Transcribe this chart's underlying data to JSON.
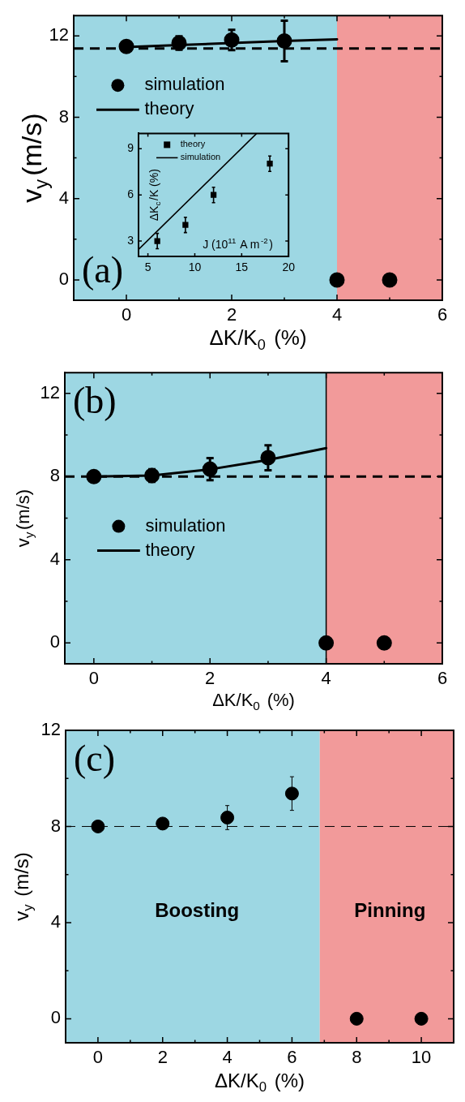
{
  "chart_data": [
    {
      "type": "scatter",
      "xlabel": "ΔK/K$_{0}$ (%)",
      "ylabel": "v$_{y}$(m/s)",
      "xlim": [
        -1,
        6
      ],
      "ylim": [
        -1,
        13
      ],
      "xticks": [
        0,
        {
          "value": 1,
          "label": null
        },
        2,
        {
          "value": 3,
          "label": null
        },
        4,
        {
          "value": 5,
          "label": null
        },
        6
      ],
      "yticks": [
        0,
        {
          "value": 2,
          "label": null
        },
        4,
        {
          "value": 6,
          "label": null
        },
        8,
        {
          "value": 10,
          "label": null
        },
        12
      ],
      "legend": "top left",
      "series": [
        {
          "name": "simulation",
          "type": "scatter",
          "marker": "circle",
          "color": "#000000",
          "x": [
            0,
            1,
            2,
            3,
            4,
            5
          ],
          "values": [
            11.48,
            11.65,
            11.8,
            11.75,
            0,
            0
          ],
          "errors": [
            null,
            0.33,
            0.5,
            1.0,
            null,
            null
          ]
        },
        {
          "name": "theory",
          "type": "line",
          "marker": "none",
          "line_style": "solid",
          "color": "#000000",
          "x": [
            0,
            1,
            2,
            3,
            4
          ],
          "values": [
            11.45,
            11.55,
            11.65,
            11.75,
            11.83
          ]
        }
      ],
      "ref_lines": [
        {
          "axis": "y",
          "value": 11.38,
          "line_style": "dashed",
          "color": "#000000"
        }
      ],
      "bands": [
        {
          "axis": "x",
          "from": -1,
          "to": 4,
          "color": "#9dd7e3"
        },
        {
          "axis": "x",
          "from": 4,
          "to": 6,
          "color": "#f29a9a"
        }
      ],
      "annotations": [
        "(a)"
      ]
    },
    {
      "type": "scatter",
      "xlabel": "J (10$^{11}$ A m$^{-2}$)",
      "ylabel": "ΔK$_{c}$/K (%)",
      "xlim": [
        4,
        20
      ],
      "ylim": [
        2,
        10
      ],
      "xticks": [
        5,
        10,
        15,
        20
      ],
      "yticks": [
        3,
        6,
        9
      ],
      "legend": "top left",
      "series": [
        {
          "name": "theory",
          "type": "scatter",
          "marker": "square",
          "color": "#000000",
          "x": [
            6,
            9,
            12,
            18
          ],
          "values": [
            3.0,
            4.05,
            6.0,
            8.03
          ],
          "errors": [
            0.5,
            0.5,
            0.5,
            0.5
          ]
        },
        {
          "name": "simulation",
          "type": "line",
          "marker": "none",
          "line_style": "solid",
          "color": "#000000",
          "x": [
            4,
            16.6
          ],
          "values": [
            2.45,
            10
          ]
        }
      ]
    },
    {
      "type": "scatter",
      "xlabel": "ΔK/K$_{0}$ (%)",
      "ylabel": "v$_{y}$(m/s)",
      "xlim": [
        -0.5,
        6
      ],
      "ylim": [
        -1,
        13
      ],
      "xticks": [
        0,
        {
          "value": 1,
          "label": null
        },
        2,
        {
          "value": 3,
          "label": null
        },
        4,
        {
          "value": 5,
          "label": null
        },
        6
      ],
      "yticks": [
        0,
        {
          "value": 2,
          "label": null
        },
        4,
        {
          "value": 6,
          "label": null
        },
        8,
        {
          "value": 10,
          "label": null
        },
        12
      ],
      "legend": "left",
      "series": [
        {
          "name": "simulation",
          "type": "scatter",
          "marker": "circle",
          "color": "#000000",
          "x": [
            0,
            1,
            2,
            3,
            4,
            5
          ],
          "values": [
            8.0,
            8.05,
            8.36,
            8.91,
            0,
            0
          ],
          "errors": [
            null,
            0.3,
            0.53,
            0.6,
            null,
            null
          ]
        },
        {
          "name": "theory",
          "type": "line",
          "marker": "none",
          "line_style": "solid",
          "color": "#000000",
          "x": [
            0,
            1,
            2,
            3,
            4
          ],
          "values": [
            8.0,
            8.05,
            8.35,
            8.8,
            9.37
          ]
        }
      ],
      "ref_lines": [
        {
          "axis": "y",
          "value": 8,
          "line_style": "dashed",
          "color": "#000000"
        },
        {
          "axis": "x",
          "value": 4,
          "line_style": "solid",
          "color": "#000000"
        }
      ],
      "bands": [
        {
          "axis": "x",
          "from": -0.5,
          "to": 4,
          "color": "#9dd7e3"
        },
        {
          "axis": "x",
          "from": 4,
          "to": 6,
          "color": "#f29a9a"
        }
      ],
      "annotations": [
        "(b)"
      ]
    },
    {
      "type": "scatter",
      "xlabel": "ΔK/K$_{0}$ (%)",
      "ylabel": "v$_{y}$ (m/s)",
      "xlim": [
        -1,
        11
      ],
      "ylim": [
        -1,
        12
      ],
      "xticks": [
        {
          "value": -1,
          "label": null
        },
        0,
        {
          "value": 1,
          "label": null
        },
        2,
        {
          "value": 3,
          "label": null
        },
        4,
        {
          "value": 5,
          "label": null
        },
        6,
        {
          "value": 7,
          "label": null
        },
        8,
        {
          "value": 9,
          "label": null
        },
        10
      ],
      "yticks": [
        0,
        {
          "value": 2,
          "label": null
        },
        4,
        {
          "value": 6,
          "label": null
        },
        8,
        {
          "value": 10,
          "label": null
        },
        12
      ],
      "series": [
        {
          "type": "scatter",
          "marker": "circle",
          "color": "#000000",
          "x": [
            0,
            2,
            4,
            6,
            8,
            10
          ],
          "values": [
            8.0,
            8.12,
            8.37,
            9.37,
            0,
            0
          ],
          "errors": [
            null,
            null,
            0.5,
            0.7,
            null,
            null
          ]
        }
      ],
      "ref_lines": [
        {
          "axis": "y",
          "value": 8,
          "line_style": "dashed",
          "color": "#000000"
        }
      ],
      "bands": [
        {
          "axis": "x",
          "from": -1,
          "to": 6.86,
          "color": "#9dd7e3",
          "label": "Boosting"
        },
        {
          "axis": "x",
          "from": 6.86,
          "to": 11,
          "color": "#f29a9a",
          "label": "Pinning"
        }
      ],
      "annotations": [
        "(c)"
      ]
    }
  ]
}
